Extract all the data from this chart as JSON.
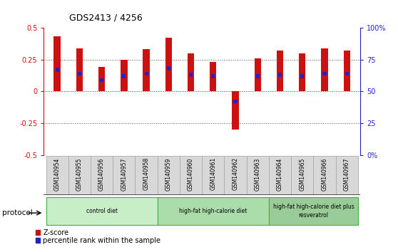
{
  "title": "GDS2413 / 4256",
  "samples": [
    "GSM140954",
    "GSM140955",
    "GSM140956",
    "GSM140957",
    "GSM140958",
    "GSM140959",
    "GSM140960",
    "GSM140961",
    "GSM140962",
    "GSM140963",
    "GSM140964",
    "GSM140965",
    "GSM140966",
    "GSM140967"
  ],
  "zscore": [
    0.43,
    0.34,
    0.19,
    0.25,
    0.33,
    0.42,
    0.3,
    0.23,
    -0.3,
    0.26,
    0.32,
    0.3,
    0.34,
    0.32
  ],
  "percentile_y": [
    0.17,
    0.14,
    0.09,
    0.12,
    0.14,
    0.18,
    0.13,
    0.12,
    -0.08,
    0.12,
    0.13,
    0.12,
    0.14,
    0.14
  ],
  "zscore_color": "#cc1111",
  "percentile_color": "#2222cc",
  "ylim": [
    -0.5,
    0.5
  ],
  "yticks_left": [
    -0.5,
    -0.25,
    0.0,
    0.25,
    0.5
  ],
  "ytick_labels_left": [
    "-0.5",
    "-0.25",
    "0",
    "0.25",
    "0.5"
  ],
  "ytick_labels_right": [
    "0%",
    "25",
    "50",
    "75",
    "100%"
  ],
  "protocol_groups": [
    {
      "label": "control diet",
      "start": 0,
      "end": 4,
      "color": "#c8eec8"
    },
    {
      "label": "high-fat high-calorie diet",
      "start": 5,
      "end": 9,
      "color": "#aaddaa"
    },
    {
      "label": "high-fat high-calorie diet plus\nresveratrol",
      "start": 10,
      "end": 13,
      "color": "#99cc99"
    }
  ],
  "bar_width": 0.3,
  "legend_zscore": "Z-score",
  "legend_percentile": "percentile rank within the sample",
  "ylabel_left_color": "#cc1111",
  "ylabel_right_color": "#2222cc"
}
